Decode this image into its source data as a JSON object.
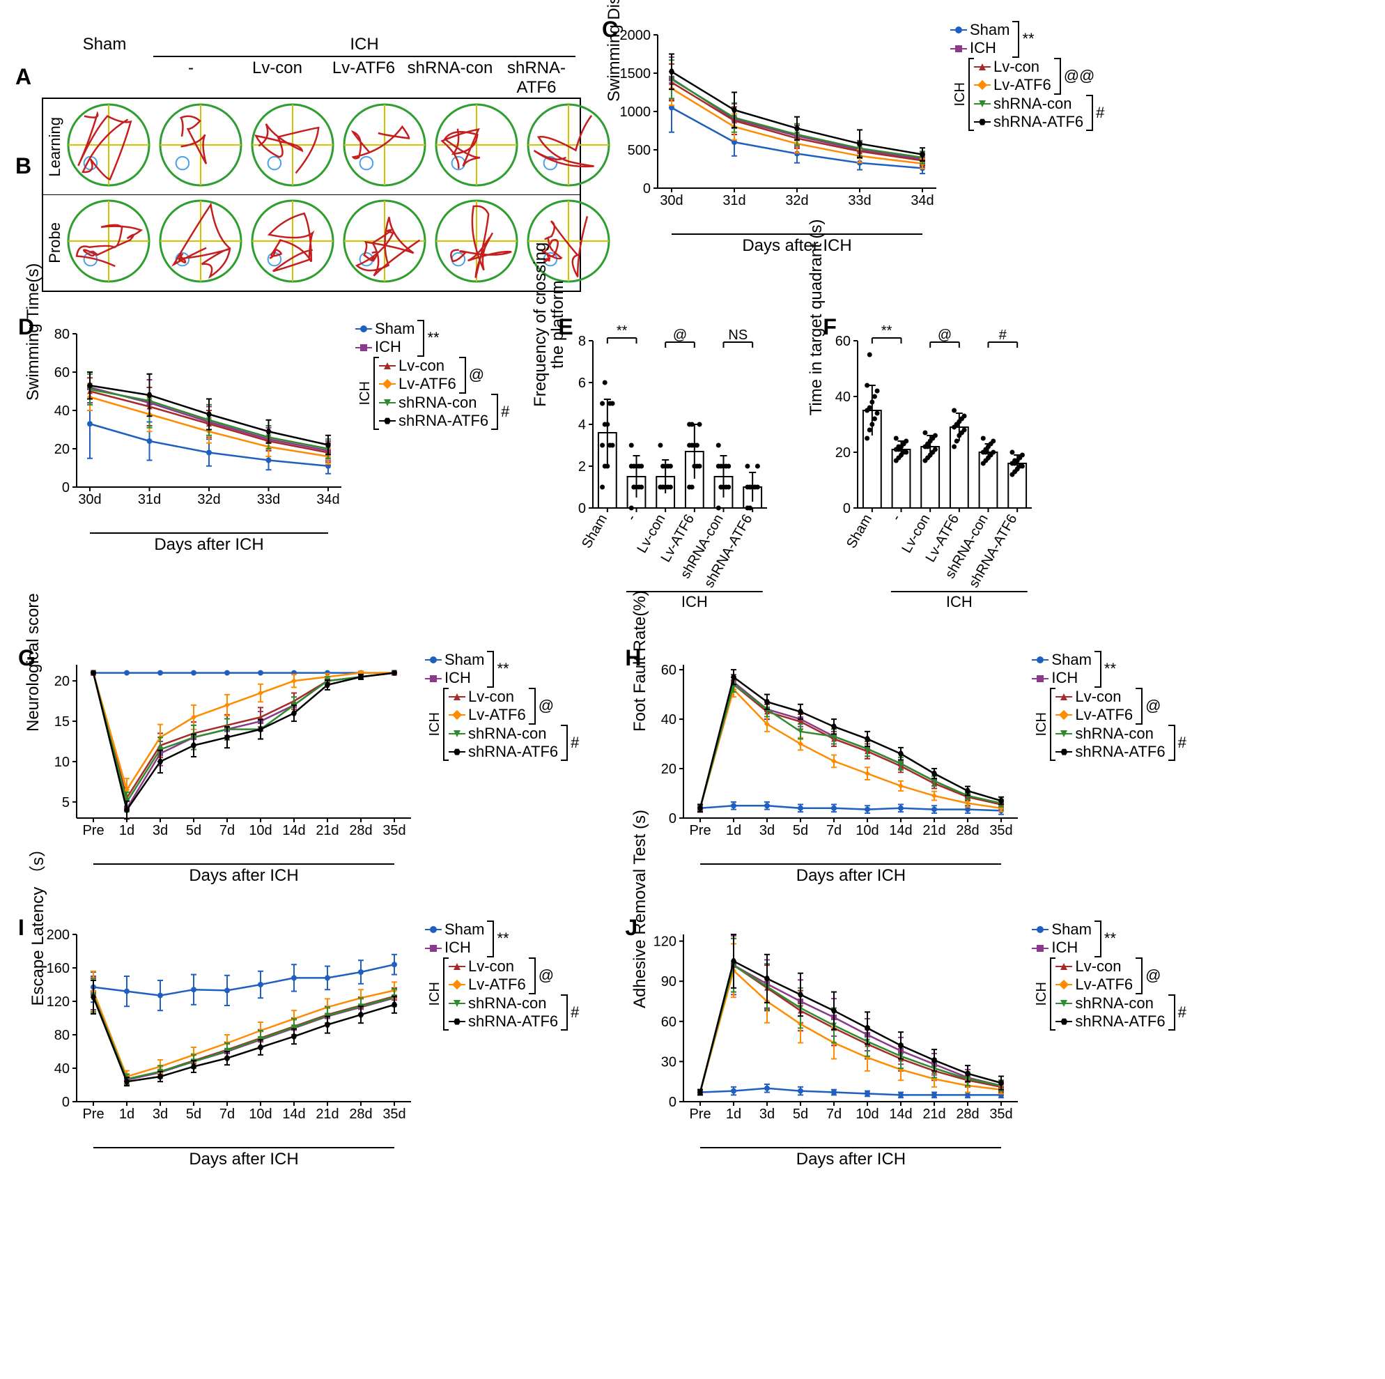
{
  "colors": {
    "Sham": "#1f5fbf",
    "ICH": "#8b3a8b",
    "Lv-con": "#a52a2a",
    "Lv-ATF6": "#ff8c00",
    "shRNA-con": "#2e8b2e",
    "shRNA-ATF6": "#000000",
    "maze_green": "#2e9e2e",
    "maze_red": "#c41e1e",
    "maze_yellow": "#d4c400",
    "maze_blue": "#4aa0e8",
    "bg": "#ffffff"
  },
  "groups": [
    "Sham",
    "ICH",
    "Lv-con",
    "Lv-ATF6",
    "shRNA-con",
    "shRNA-ATF6"
  ],
  "group_labels_bar": [
    "Sham",
    "-",
    "Lv-con",
    "Lv-ATF6",
    "shRNA-con",
    "shRNA-ATF6"
  ],
  "markers": [
    "circle",
    "square",
    "triangle-up",
    "diamond",
    "triangle-down",
    "hex"
  ],
  "sig_pairs": [
    {
      "a": "Sham",
      "b": "ICH",
      "label": "**"
    },
    {
      "a": "Lv-con",
      "b": "Lv-ATF6",
      "label": "@"
    },
    {
      "a": "shRNA-con",
      "b": "shRNA-ATF6",
      "label": "#"
    }
  ],
  "panels": {
    "A": {
      "label": "A",
      "row_label": "Learning"
    },
    "B": {
      "label": "B",
      "row_label": "Probe"
    },
    "maze_header": {
      "sham": "Sham",
      "ich": "ICH",
      "sub": [
        "-",
        "Lv-con",
        "Lv-ATF6",
        "shRNA-con",
        "shRNA-ATF6"
      ]
    },
    "C": {
      "label": "C",
      "type": "line",
      "ylabel": "Swimming Distance(mm)",
      "xlabel": "Days after ICH",
      "x": [
        "30d",
        "31d",
        "32d",
        "33d",
        "34d"
      ],
      "ylim": [
        0,
        2000
      ],
      "yticks": [
        0,
        500,
        1000,
        1500,
        2000
      ],
      "sig": [
        "**",
        "@@",
        "#"
      ],
      "series": {
        "Sham": [
          1050,
          600,
          450,
          330,
          260
        ],
        "ICH": [
          1430,
          900,
          680,
          500,
          380
        ],
        "Lv-con": [
          1380,
          880,
          650,
          480,
          360
        ],
        "Lv-ATF6": [
          1300,
          800,
          580,
          420,
          320
        ],
        "shRNA-con": [
          1420,
          920,
          700,
          520,
          400
        ],
        "shRNA-ATF6": [
          1520,
          1020,
          780,
          580,
          440
        ]
      },
      "err": {
        "Sham": [
          320,
          180,
          120,
          90,
          70
        ],
        "ICH": [
          280,
          200,
          140,
          100,
          80
        ],
        "Lv-con": [
          240,
          180,
          130,
          90,
          70
        ],
        "Lv-ATF6": [
          220,
          170,
          120,
          85,
          65
        ],
        "shRNA-con": [
          250,
          190,
          140,
          100,
          80
        ],
        "shRNA-ATF6": [
          230,
          230,
          150,
          180,
          85
        ]
      }
    },
    "D": {
      "label": "D",
      "type": "line",
      "ylabel": "Swimming Time(s)",
      "xlabel": "Days after ICH",
      "x": [
        "30d",
        "31d",
        "32d",
        "33d",
        "34d"
      ],
      "ylim": [
        0,
        80
      ],
      "yticks": [
        0,
        20,
        40,
        60,
        80
      ],
      "sig": [
        "**",
        "@",
        "#"
      ],
      "series": {
        "Sham": [
          33,
          24,
          18,
          14,
          11
        ],
        "ICH": [
          52,
          44,
          34,
          25,
          19
        ],
        "Lv-con": [
          50,
          42,
          33,
          24,
          18
        ],
        "Lv-ATF6": [
          47,
          38,
          29,
          21,
          16
        ],
        "shRNA-con": [
          51,
          45,
          35,
          26,
          20
        ],
        "shRNA-ATF6": [
          53,
          48,
          38,
          29,
          22
        ]
      },
      "err": {
        "Sham": [
          18,
          10,
          7,
          5,
          4
        ],
        "ICH": [
          8,
          12,
          8,
          6,
          5
        ],
        "Lv-con": [
          7,
          10,
          7,
          5,
          5
        ],
        "Lv-ATF6": [
          7,
          9,
          6,
          5,
          4
        ],
        "shRNA-con": [
          8,
          14,
          8,
          6,
          5
        ],
        "shRNA-ATF6": [
          7,
          11,
          8,
          6,
          5
        ]
      }
    },
    "E": {
      "label": "E",
      "type": "bar-scatter",
      "ylabel": "Frequency  of crossing\nthe platform",
      "ylim": [
        0,
        8
      ],
      "yticks": [
        0,
        2,
        4,
        6,
        8
      ],
      "means": [
        3.6,
        1.5,
        1.5,
        2.7,
        1.5,
        1.0
      ],
      "err": [
        1.6,
        1.0,
        0.8,
        1.3,
        1.0,
        0.7
      ],
      "points": [
        [
          1,
          2,
          2,
          3,
          3,
          3,
          4,
          4,
          5,
          5,
          5,
          6
        ],
        [
          0,
          1,
          1,
          1,
          1,
          2,
          2,
          2,
          2,
          2,
          3,
          1
        ],
        [
          1,
          1,
          1,
          1,
          1,
          1,
          2,
          2,
          2,
          2,
          3,
          1
        ],
        [
          1,
          1,
          2,
          2,
          2,
          3,
          3,
          3,
          3,
          4,
          4,
          4
        ],
        [
          0,
          1,
          1,
          1,
          1,
          2,
          2,
          2,
          2,
          2,
          3,
          1
        ],
        [
          0,
          0,
          1,
          1,
          1,
          1,
          1,
          1,
          1,
          2,
          2,
          1
        ]
      ],
      "sig_brackets": [
        {
          "from": 0,
          "to": 1,
          "label": "**"
        },
        {
          "from": 2,
          "to": 3,
          "label": "@"
        },
        {
          "from": 4,
          "to": 5,
          "label": "NS"
        }
      ],
      "ich_bar_label": "ICH"
    },
    "F": {
      "label": "F",
      "type": "bar-scatter",
      "ylabel": "Time in target quadrant (s)",
      "ylim": [
        0,
        60
      ],
      "yticks": [
        0,
        20,
        40,
        60
      ],
      "means": [
        35,
        21,
        22,
        29,
        20,
        16
      ],
      "err": [
        9,
        3,
        4,
        5,
        3,
        3
      ],
      "points": [
        [
          25,
          28,
          30,
          32,
          34,
          35,
          36,
          38,
          40,
          42,
          44,
          55
        ],
        [
          17,
          18,
          19,
          20,
          20,
          21,
          21,
          22,
          23,
          24,
          25,
          22
        ],
        [
          17,
          18,
          19,
          20,
          21,
          22,
          23,
          24,
          25,
          26,
          27,
          22
        ],
        [
          22,
          24,
          26,
          27,
          28,
          29,
          30,
          31,
          32,
          33,
          35,
          30
        ],
        [
          16,
          17,
          18,
          19,
          20,
          20,
          21,
          22,
          23,
          24,
          25,
          20
        ],
        [
          12,
          13,
          14,
          15,
          15,
          16,
          16,
          17,
          18,
          19,
          20,
          17
        ]
      ],
      "sig_brackets": [
        {
          "from": 0,
          "to": 1,
          "label": "**"
        },
        {
          "from": 2,
          "to": 3,
          "label": "@"
        },
        {
          "from": 4,
          "to": 5,
          "label": "#"
        }
      ],
      "ich_bar_label": "ICH"
    },
    "G": {
      "label": "G",
      "type": "line",
      "ylabel": "Neurological score",
      "xlabel": "Days after ICH",
      "x": [
        "Pre",
        "1d",
        "3d",
        "5d",
        "7d",
        "10d",
        "14d",
        "21d",
        "28d",
        "35d"
      ],
      "ylim": [
        3,
        22
      ],
      "yticks": [
        5,
        10,
        15,
        20
      ],
      "sig": [
        "**",
        "@",
        "#"
      ],
      "series": {
        "Sham": [
          21,
          21,
          21,
          21,
          21,
          21,
          21,
          21,
          21,
          21
        ],
        "ICH": [
          21,
          4.2,
          11,
          13,
          14,
          15,
          17,
          20,
          20.5,
          21
        ],
        "Lv-con": [
          21,
          5.5,
          12,
          13.5,
          14.5,
          15.5,
          17.5,
          20,
          20.5,
          21
        ],
        "Lv-ATF6": [
          21,
          6.5,
          13,
          15.5,
          17,
          18.5,
          20,
          20.5,
          21,
          21
        ],
        "shRNA-con": [
          21,
          5,
          11.5,
          13,
          14,
          14,
          17,
          20,
          20.5,
          21
        ],
        "shRNA-ATF6": [
          21,
          4,
          10,
          12,
          13,
          14,
          16,
          19.5,
          20.5,
          21
        ]
      },
      "err": {
        "Sham": [
          0,
          0,
          0,
          0,
          0,
          0,
          0,
          0,
          0,
          0
        ],
        "ICH": [
          0,
          1.2,
          1.5,
          1.5,
          1.3,
          1.2,
          1,
          0.5,
          0.3,
          0
        ],
        "Lv-con": [
          0,
          1.3,
          1.5,
          1.4,
          1.3,
          1.2,
          1,
          0.5,
          0.3,
          0
        ],
        "Lv-ATF6": [
          0,
          1.4,
          1.6,
          1.5,
          1.3,
          1.1,
          0.8,
          0.4,
          0.2,
          0
        ],
        "shRNA-con": [
          0,
          1.2,
          1.5,
          1.5,
          1.3,
          1.2,
          1,
          0.5,
          0.3,
          0
        ],
        "shRNA-ATF6": [
          0,
          1.1,
          1.4,
          1.4,
          1.3,
          1.2,
          1,
          0.6,
          0.3,
          0
        ]
      }
    },
    "H": {
      "label": "H",
      "type": "line",
      "ylabel": "Foot Fault Rate(%)",
      "xlabel": "Days after ICH",
      "x": [
        "Pre",
        "1d",
        "3d",
        "5d",
        "7d",
        "10d",
        "14d",
        "21d",
        "28d",
        "35d"
      ],
      "ylim": [
        0,
        62
      ],
      "yticks": [
        0,
        20,
        40,
        60
      ],
      "sig": [
        "**",
        "@",
        "#"
      ],
      "series": {
        "Sham": [
          4,
          5,
          5,
          4,
          4,
          3.5,
          4,
          3.5,
          3.5,
          3
        ],
        "ICH": [
          4,
          55,
          44,
          40,
          33,
          28,
          22,
          15,
          9,
          6
        ],
        "Lv-con": [
          4,
          54,
          43,
          39,
          32,
          27,
          21,
          14,
          8.5,
          5.5
        ],
        "Lv-ATF6": [
          4,
          52,
          38,
          30,
          23,
          18,
          13,
          9,
          6,
          4
        ],
        "shRNA-con": [
          4,
          54,
          44,
          35,
          33,
          28,
          22,
          15,
          9,
          6
        ],
        "shRNA-ATF6": [
          4,
          57,
          47,
          43,
          37,
          32,
          26,
          18,
          11,
          7
        ]
      },
      "err": {
        "Sham": [
          1.5,
          1.5,
          1.5,
          1.5,
          1.5,
          1.5,
          1.5,
          1.5,
          1.5,
          1.5
        ],
        "ICH": [
          1.5,
          3,
          3,
          3,
          3,
          3,
          2.5,
          2,
          1.5,
          1.5
        ],
        "Lv-con": [
          1.5,
          3,
          3,
          3,
          3,
          3,
          2.5,
          2,
          1.5,
          1.5
        ],
        "Lv-ATF6": [
          1.5,
          3,
          3,
          2.5,
          2.5,
          2.5,
          2,
          1.8,
          1.5,
          1.3
        ],
        "shRNA-con": [
          1.5,
          3,
          3,
          3,
          3,
          3,
          2.5,
          2,
          1.5,
          1.5
        ],
        "shRNA-ATF6": [
          1.5,
          3,
          3,
          3,
          3,
          3,
          2.5,
          2,
          1.8,
          1.5
        ]
      }
    },
    "I": {
      "label": "I",
      "type": "line",
      "ylabel": "Escape Latency （s）",
      "xlabel": "Days after ICH",
      "x": [
        "Pre",
        "1d",
        "3d",
        "5d",
        "7d",
        "10d",
        "14d",
        "21d",
        "28d",
        "35d"
      ],
      "ylim": [
        0,
        200
      ],
      "yticks": [
        0,
        40,
        80,
        120,
        160,
        200
      ],
      "sig": [
        "**",
        "@",
        "#"
      ],
      "series": {
        "Sham": [
          137,
          132,
          127,
          134,
          133,
          140,
          148,
          148,
          155,
          164
        ],
        "ICH": [
          130,
          26,
          35,
          48,
          60,
          74,
          88,
          102,
          113,
          124
        ],
        "Lv-con": [
          128,
          27,
          36,
          49,
          62,
          76,
          90,
          104,
          115,
          126
        ],
        "Lv-ATF6": [
          132,
          30,
          42,
          56,
          70,
          85,
          99,
          113,
          124,
          133
        ],
        "shRNA-con": [
          127,
          27,
          36,
          48,
          61,
          75,
          89,
          103,
          114,
          125
        ],
        "shRNA-ATF6": [
          125,
          24,
          30,
          42,
          52,
          65,
          78,
          92,
          104,
          116
        ]
      },
      "err": {
        "Sham": [
          18,
          18,
          18,
          18,
          18,
          16,
          16,
          14,
          14,
          12
        ],
        "ICH": [
          20,
          6,
          7,
          8,
          9,
          10,
          10,
          10,
          10,
          10
        ],
        "Lv-con": [
          20,
          6,
          7,
          8,
          9,
          10,
          10,
          10,
          10,
          10
        ],
        "Lv-ATF6": [
          24,
          7,
          8,
          9,
          10,
          10,
          10,
          10,
          10,
          10
        ],
        "shRNA-con": [
          20,
          6,
          7,
          8,
          9,
          10,
          10,
          10,
          10,
          10
        ],
        "shRNA-ATF6": [
          20,
          5,
          6,
          7,
          8,
          9,
          9,
          10,
          10,
          10
        ]
      }
    },
    "J": {
      "label": "J",
      "type": "line",
      "ylabel": "Adhesive Removal Test (s)",
      "xlabel": "Days after ICH",
      "x": [
        "Pre",
        "1d",
        "3d",
        "5d",
        "7d",
        "10d",
        "14d",
        "21d",
        "28d",
        "35d"
      ],
      "ylim": [
        0,
        125
      ],
      "yticks": [
        0,
        30,
        60,
        90,
        120
      ],
      "sig": [
        "**",
        "@",
        "#"
      ],
      "series": {
        "Sham": [
          7,
          8,
          10,
          8,
          7,
          6,
          5,
          5,
          5,
          5
        ],
        "ICH": [
          7,
          102,
          88,
          75,
          63,
          50,
          38,
          28,
          18,
          12
        ],
        "Lv-con": [
          7,
          102,
          85,
          68,
          55,
          43,
          32,
          23,
          16,
          11
        ],
        "Lv-ATF6": [
          7,
          98,
          75,
          58,
          44,
          33,
          24,
          17,
          12,
          9
        ],
        "shRNA-con": [
          7,
          102,
          86,
          70,
          57,
          45,
          34,
          25,
          17,
          12
        ],
        "shRNA-ATF6": [
          7,
          105,
          92,
          80,
          68,
          55,
          42,
          31,
          21,
          14
        ]
      },
      "err": {
        "Sham": [
          2,
          3,
          3,
          3,
          2,
          2,
          2,
          2,
          2,
          2
        ],
        "ICH": [
          2,
          22,
          18,
          16,
          14,
          12,
          10,
          8,
          6,
          4
        ],
        "Lv-con": [
          2,
          20,
          17,
          15,
          13,
          11,
          9,
          7,
          5,
          4
        ],
        "Lv-ATF6": [
          2,
          20,
          16,
          14,
          12,
          10,
          8,
          6,
          5,
          3
        ],
        "shRNA-con": [
          2,
          20,
          17,
          15,
          13,
          11,
          9,
          7,
          5,
          4
        ],
        "shRNA-ATF6": [
          2,
          20,
          18,
          16,
          14,
          12,
          10,
          8,
          6,
          5
        ]
      }
    }
  },
  "layout": {
    "maze_circle_r": 58,
    "line_chart_w": 420,
    "line_chart_h": 260,
    "line_chart_w_wide": 480,
    "line_chart_h_wide": 280,
    "bar_chart_w": 300,
    "bar_chart_h": 260,
    "line_width": 2.5,
    "marker_size": 8,
    "tick_fontsize": 20,
    "label_fontsize": 24
  }
}
